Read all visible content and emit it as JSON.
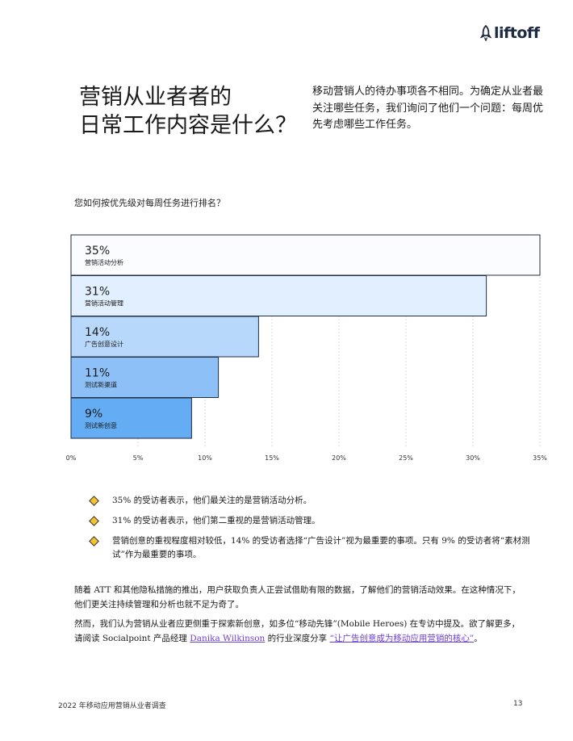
{
  "brand": {
    "logo_text": "liftoff",
    "logo_icon": "rocket-icon",
    "color": "#1d2a44"
  },
  "headline": {
    "line1": "营销从业者者的",
    "line2": "日常工作内容是什么？"
  },
  "intro": "移动营销人的待办事项各不相同。为确定从业者最关注哪些任务，我们询问了他们一个问题：每周优先考虑哪些工作任务。",
  "chart_question": "您如何按优先级对每周任务进行排名？",
  "chart_data": {
    "type": "bar",
    "orientation": "horizontal",
    "categories": [
      "营销活动分析",
      "营销活动管理",
      "广告创意设计",
      "测试新渠道",
      "测试新创意"
    ],
    "values": [
      35,
      31,
      14,
      11,
      9
    ],
    "value_labels": [
      "35%",
      "31%",
      "14%",
      "11%",
      "9%"
    ],
    "xlim": [
      0,
      35
    ],
    "xticks": [
      "0%",
      "5%",
      "10%",
      "15%",
      "20%",
      "25%",
      "30%",
      "35%"
    ],
    "grid": "vertical-dashed",
    "colors": [
      "#fbfcff",
      "#e1efff",
      "#b8d8fb",
      "#8cc0f7",
      "#64adf5"
    ],
    "stroke": "#1f2d45"
  },
  "bullets": [
    "35% 的受访者表示，他们最关注的是营销活动分析。",
    "31% 的受访者表示，他们第二重视的是营销活动管理。",
    "营销创意的重视程度相对较低，14% 的受访者选择“广告设计”视为最重要的事项。只有 9% 的受访者将“素材测试”作为最重要的事项。"
  ],
  "para1": "随着 ATT 和其他隐私措施的推出，用户获取负责人正尝试借助有限的数据，了解他们的营销活动效果。在这种情况下，他们更关注持续管理和分析也就不足为奇了。",
  "para2": {
    "text_before": "然而，我们认为营销从业者应更侧重于探索新创意，如多位“移动先锋”(Mobile Heroes) 在专访中提及。欲了解更多，请阅读 Socialpoint 产品经理 ",
    "link1": "Danika Wilkinson",
    "text_middle": " 的行业深度分享 ",
    "link2": "“让广告创意成为移动应用营销的核心”",
    "text_after": "。"
  },
  "footer": {
    "title": "2022 年移动应用营销从业者调查",
    "page": "13"
  }
}
